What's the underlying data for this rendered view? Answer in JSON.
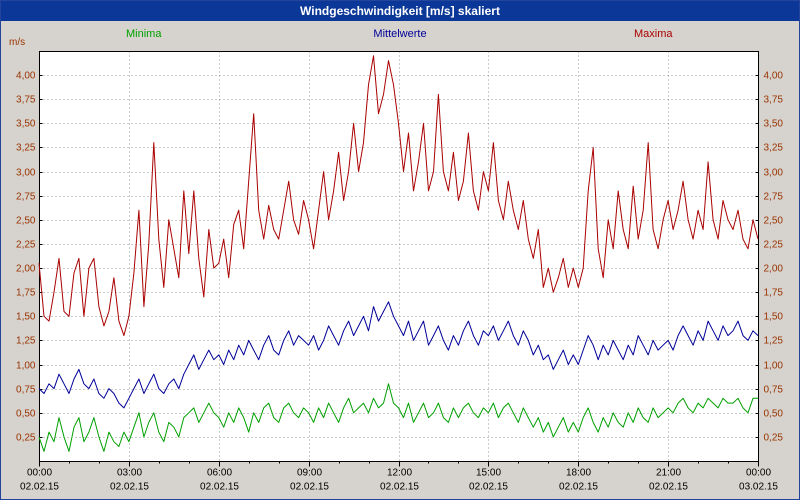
{
  "window": {
    "title": "Windgeschwindigkeit [m/s] skaliert"
  },
  "legend": {
    "minima": "Minima",
    "mittelwerte": "Mittelwerte",
    "maxima": "Maxima"
  },
  "colors": {
    "titlebar_bg": "#0a3798",
    "titlebar_text": "#ffffff",
    "window_bg": "#d6d3ce",
    "plot_bg": "#ffffff",
    "plot_border": "#000000",
    "grid": "#999999",
    "y_label": "#993300",
    "x_label": "#000000",
    "minima": "#00a000",
    "mittelwerte": "#000099",
    "maxima": "#aa0000"
  },
  "chart_data": {
    "type": "line",
    "title": "Windgeschwindigkeit [m/s] skaliert",
    "ylabel": "m/s",
    "xlabel": "",
    "ylim": [
      0,
      4.25
    ],
    "y_tick_step": 0.25,
    "y_tick_labels": [
      "0,25",
      "0,50",
      "0,75",
      "1,00",
      "1,25",
      "1,50",
      "1,75",
      "2,00",
      "2,25",
      "2,50",
      "2,75",
      "3,00",
      "3,25",
      "3,50",
      "3,75",
      "4,00"
    ],
    "x_start": "00:00",
    "x_step_minutes": 10,
    "x_tick_labels": [
      "00:00",
      "03:00",
      "06:00",
      "09:00",
      "12:00",
      "15:00",
      "18:00",
      "21:00",
      "00:00"
    ],
    "x_date_labels": [
      "02.02.15",
      "02.02.15",
      "02.02.15",
      "02.02.15",
      "02.02.15",
      "02.02.15",
      "02.02.15",
      "02.02.15",
      "03.02.15"
    ],
    "grid": "dotted",
    "legend_position": "top",
    "series": [
      {
        "name": "Minima",
        "color": "#00a000",
        "values": [
          0.25,
          0.1,
          0.3,
          0.2,
          0.45,
          0.25,
          0.1,
          0.35,
          0.45,
          0.2,
          0.3,
          0.45,
          0.25,
          0.1,
          0.3,
          0.2,
          0.15,
          0.3,
          0.2,
          0.35,
          0.5,
          0.25,
          0.4,
          0.5,
          0.3,
          0.2,
          0.4,
          0.35,
          0.25,
          0.45,
          0.5,
          0.55,
          0.4,
          0.5,
          0.6,
          0.5,
          0.45,
          0.35,
          0.5,
          0.4,
          0.55,
          0.45,
          0.3,
          0.5,
          0.4,
          0.55,
          0.6,
          0.45,
          0.4,
          0.55,
          0.6,
          0.5,
          0.45,
          0.55,
          0.5,
          0.4,
          0.55,
          0.45,
          0.6,
          0.5,
          0.4,
          0.55,
          0.65,
          0.5,
          0.55,
          0.6,
          0.5,
          0.65,
          0.55,
          0.6,
          0.8,
          0.6,
          0.55,
          0.45,
          0.6,
          0.4,
          0.5,
          0.6,
          0.45,
          0.5,
          0.6,
          0.45,
          0.4,
          0.55,
          0.45,
          0.55,
          0.6,
          0.5,
          0.45,
          0.55,
          0.5,
          0.6,
          0.45,
          0.55,
          0.6,
          0.5,
          0.4,
          0.55,
          0.45,
          0.35,
          0.45,
          0.3,
          0.4,
          0.25,
          0.35,
          0.45,
          0.3,
          0.4,
          0.3,
          0.45,
          0.55,
          0.4,
          0.3,
          0.45,
          0.35,
          0.5,
          0.4,
          0.35,
          0.5,
          0.4,
          0.55,
          0.45,
          0.4,
          0.55,
          0.45,
          0.5,
          0.55,
          0.5,
          0.6,
          0.65,
          0.55,
          0.5,
          0.6,
          0.55,
          0.65,
          0.6,
          0.55,
          0.65,
          0.6,
          0.6,
          0.65,
          0.55,
          0.5,
          0.65,
          0.65
        ]
      },
      {
        "name": "Mittelwerte",
        "color": "#000099",
        "values": [
          0.75,
          0.7,
          0.8,
          0.75,
          0.9,
          0.8,
          0.7,
          0.85,
          0.95,
          0.8,
          0.75,
          0.85,
          0.7,
          0.65,
          0.75,
          0.7,
          0.6,
          0.55,
          0.65,
          0.75,
          0.85,
          0.7,
          0.8,
          0.9,
          0.75,
          0.7,
          0.8,
          0.85,
          0.75,
          0.9,
          1.0,
          1.1,
          0.95,
          1.05,
          1.15,
          1.05,
          1.1,
          1.0,
          1.15,
          1.05,
          1.2,
          1.1,
          1.25,
          1.15,
          1.05,
          1.2,
          1.3,
          1.15,
          1.1,
          1.25,
          1.35,
          1.2,
          1.3,
          1.25,
          1.2,
          1.3,
          1.15,
          1.25,
          1.4,
          1.3,
          1.2,
          1.35,
          1.45,
          1.3,
          1.4,
          1.5,
          1.35,
          1.6,
          1.45,
          1.55,
          1.65,
          1.5,
          1.4,
          1.3,
          1.45,
          1.25,
          1.35,
          1.45,
          1.2,
          1.3,
          1.4,
          1.25,
          1.15,
          1.3,
          1.2,
          1.35,
          1.45,
          1.3,
          1.2,
          1.35,
          1.3,
          1.4,
          1.25,
          1.35,
          1.45,
          1.3,
          1.2,
          1.35,
          1.25,
          1.1,
          1.2,
          1.05,
          1.1,
          0.95,
          1.05,
          1.15,
          1.0,
          1.1,
          1.0,
          1.15,
          1.3,
          1.2,
          1.05,
          1.2,
          1.1,
          1.25,
          1.15,
          1.05,
          1.2,
          1.1,
          1.3,
          1.2,
          1.1,
          1.25,
          1.15,
          1.2,
          1.25,
          1.15,
          1.3,
          1.4,
          1.3,
          1.2,
          1.35,
          1.25,
          1.45,
          1.35,
          1.25,
          1.4,
          1.3,
          1.35,
          1.45,
          1.3,
          1.25,
          1.35,
          1.3
        ]
      },
      {
        "name": "Maxima",
        "color": "#aa0000",
        "values": [
          2.05,
          1.5,
          1.45,
          1.75,
          2.1,
          1.55,
          1.5,
          1.95,
          2.1,
          1.5,
          2.0,
          2.1,
          1.6,
          1.4,
          1.55,
          1.9,
          1.45,
          1.3,
          1.5,
          1.95,
          2.6,
          1.6,
          2.25,
          3.3,
          2.3,
          1.8,
          2.5,
          2.2,
          1.9,
          2.8,
          2.15,
          2.8,
          2.1,
          1.7,
          2.4,
          2.0,
          2.05,
          2.3,
          1.9,
          2.45,
          2.6,
          2.2,
          2.9,
          3.6,
          2.6,
          2.3,
          2.65,
          2.4,
          2.3,
          2.6,
          2.9,
          2.5,
          2.35,
          2.7,
          2.5,
          2.2,
          2.6,
          3.0,
          2.5,
          2.8,
          3.2,
          2.7,
          3.0,
          3.5,
          3.0,
          3.3,
          3.9,
          4.2,
          3.6,
          3.8,
          4.15,
          3.9,
          3.5,
          3.0,
          3.4,
          2.8,
          3.1,
          3.5,
          2.8,
          3.0,
          3.8,
          3.0,
          2.8,
          3.2,
          2.7,
          2.9,
          3.4,
          2.8,
          2.6,
          3.0,
          2.8,
          3.3,
          2.7,
          2.5,
          2.9,
          2.6,
          2.4,
          2.7,
          2.3,
          2.1,
          2.4,
          1.8,
          2.0,
          1.75,
          1.9,
          2.1,
          1.8,
          2.0,
          1.8,
          2.0,
          2.8,
          3.25,
          2.2,
          1.9,
          2.5,
          2.2,
          2.8,
          2.4,
          2.2,
          2.85,
          2.3,
          2.6,
          3.3,
          2.4,
          2.2,
          2.5,
          2.7,
          2.4,
          2.6,
          2.9,
          2.5,
          2.3,
          2.6,
          2.4,
          3.1,
          2.5,
          2.3,
          2.7,
          2.5,
          2.4,
          2.6,
          2.3,
          2.2,
          2.5,
          2.3
        ]
      }
    ]
  }
}
